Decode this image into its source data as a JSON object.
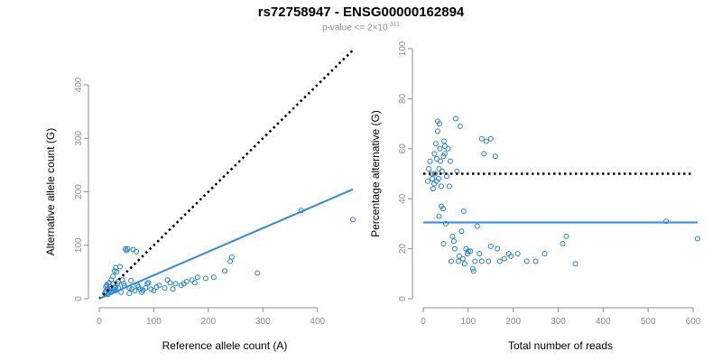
{
  "header": {
    "title": "rs72758947 - ENSG00000162894",
    "subtitle_base": "p-value <= 2×10",
    "subtitle_exp": "-311"
  },
  "colors": {
    "points": "#1f7fcf",
    "fit_line": "#2a8ae6",
    "reference_line": "#000000",
    "axis": "#8c8c8c"
  },
  "chart_data": [
    {
      "type": "scatter",
      "title": "",
      "xlabel": "Reference allele count (A)",
      "ylabel": "Alternative allele count (G)",
      "xlim": [
        0,
        460
      ],
      "ylim": [
        0,
        400
      ],
      "xticks": [
        0,
        100,
        200,
        300,
        400
      ],
      "yticks": [
        0,
        100,
        200,
        300,
        400
      ],
      "grid": false,
      "reference_line": {
        "style": "dotted",
        "slope": 1,
        "intercept": 0,
        "x_range": [
          0,
          465
        ]
      },
      "fit_line": {
        "style": "solid",
        "slope": 0.44,
        "intercept": 0,
        "x_range": [
          0,
          465
        ]
      },
      "series": [
        {
          "points": [
            [
              10,
              10
            ],
            [
              12,
              14
            ],
            [
              15,
              18
            ],
            [
              14,
              25
            ],
            [
              18,
              30
            ],
            [
              20,
              22
            ],
            [
              22,
              12
            ],
            [
              25,
              28
            ],
            [
              28,
              20
            ],
            [
              30,
              15
            ],
            [
              35,
              32
            ],
            [
              32,
              50
            ],
            [
              30,
              58
            ],
            [
              28,
              52
            ],
            [
              22,
              35
            ],
            [
              25,
              42
            ],
            [
              12,
              22
            ],
            [
              14,
              26
            ],
            [
              16,
              8
            ],
            [
              20,
              18
            ],
            [
              45,
              28
            ],
            [
              50,
              90
            ],
            [
              52,
              93
            ],
            [
              48,
              93
            ],
            [
              60,
              18
            ],
            [
              65,
              15
            ],
            [
              55,
              20
            ],
            [
              70,
              25
            ],
            [
              75,
              18
            ],
            [
              78,
              12
            ],
            [
              80,
              16
            ],
            [
              85,
              20
            ],
            [
              90,
              30
            ],
            [
              95,
              18
            ],
            [
              100,
              15
            ],
            [
              110,
              25
            ],
            [
              120,
              20
            ],
            [
              130,
              30
            ],
            [
              140,
              28
            ],
            [
              150,
              25
            ],
            [
              160,
              32
            ],
            [
              170,
              35
            ],
            [
              180,
              40
            ],
            [
              195,
              38
            ],
            [
              210,
              40
            ],
            [
              230,
              52
            ],
            [
              240,
              70
            ],
            [
              243,
              78
            ],
            [
              290,
              48
            ],
            [
              370,
              165
            ],
            [
              465,
              148
            ],
            [
              38,
              60
            ],
            [
              42,
              35
            ],
            [
              30,
              22
            ],
            [
              26,
              18
            ],
            [
              18,
              15
            ],
            [
              35,
              20
            ],
            [
              62,
              92
            ],
            [
              68,
              88
            ],
            [
              55,
              10
            ],
            [
              40,
              12
            ],
            [
              33,
              28
            ],
            [
              46,
              24
            ],
            [
              58,
              34
            ],
            [
              72,
              22
            ],
            [
              88,
              28
            ],
            [
              105,
              22
            ],
            [
              125,
              35
            ],
            [
              135,
              18
            ],
            [
              155,
              28
            ],
            [
              175,
              30
            ]
          ]
        }
      ]
    },
    {
      "type": "scatter",
      "title": "",
      "xlabel": "Total number of reads",
      "ylabel": "Percentage alternative (G)",
      "xlim": [
        0,
        610
      ],
      "ylim": [
        0,
        100
      ],
      "xticks": [
        0,
        100,
        200,
        300,
        400,
        500,
        600
      ],
      "yticks": [
        0,
        20,
        40,
        60,
        80,
        100
      ],
      "grid": false,
      "reference_line": {
        "style": "dotted",
        "y": 50,
        "x_range": [
          0,
          600
        ]
      },
      "fit_line": {
        "style": "solid",
        "y": 30.5,
        "x_range": [
          0,
          610
        ]
      },
      "series": [
        {
          "points": [
            [
              10,
              47
            ],
            [
              12,
              52
            ],
            [
              15,
              55
            ],
            [
              18,
              50
            ],
            [
              20,
              48
            ],
            [
              22,
              44
            ],
            [
              24,
              46
            ],
            [
              25,
              58
            ],
            [
              26,
              50
            ],
            [
              28,
              62
            ],
            [
              30,
              47
            ],
            [
              30,
              56
            ],
            [
              32,
              67
            ],
            [
              32,
              71
            ],
            [
              34,
              48
            ],
            [
              35,
              33
            ],
            [
              35,
              52
            ],
            [
              36,
              70
            ],
            [
              37,
              60
            ],
            [
              38,
              55
            ],
            [
              40,
              37
            ],
            [
              40,
              45
            ],
            [
              42,
              51
            ],
            [
              44,
              36
            ],
            [
              45,
              22
            ],
            [
              45,
              57
            ],
            [
              46,
              63
            ],
            [
              48,
              58
            ],
            [
              48,
              61
            ],
            [
              50,
              30
            ],
            [
              52,
              49
            ],
            [
              55,
              60
            ],
            [
              58,
              45
            ],
            [
              60,
              55
            ],
            [
              62,
              15
            ],
            [
              65,
              25
            ],
            [
              68,
              23
            ],
            [
              70,
              20
            ],
            [
              72,
              72
            ],
            [
              75,
              51
            ],
            [
              78,
              15
            ],
            [
              80,
              17
            ],
            [
              82,
              69
            ],
            [
              85,
              27
            ],
            [
              88,
              16
            ],
            [
              90,
              35
            ],
            [
              92,
              14
            ],
            [
              95,
              20
            ],
            [
              98,
              18
            ],
            [
              100,
              19
            ],
            [
              105,
              19
            ],
            [
              110,
              12
            ],
            [
              112,
              11
            ],
            [
              115,
              15
            ],
            [
              120,
              29
            ],
            [
              125,
              18
            ],
            [
              130,
              15
            ],
            [
              130,
              64
            ],
            [
              135,
              58
            ],
            [
              140,
              63
            ],
            [
              145,
              15
            ],
            [
              150,
              64
            ],
            [
              150,
              21
            ],
            [
              160,
              57
            ],
            [
              165,
              20
            ],
            [
              170,
              15
            ],
            [
              180,
              16
            ],
            [
              190,
              18
            ],
            [
              195,
              17
            ],
            [
              210,
              18
            ],
            [
              230,
              15
            ],
            [
              250,
              15
            ],
            [
              270,
              18
            ],
            [
              310,
              22
            ],
            [
              318,
              25
            ],
            [
              338,
              14
            ],
            [
              540,
              31
            ],
            [
              610,
              24
            ]
          ]
        }
      ]
    }
  ]
}
